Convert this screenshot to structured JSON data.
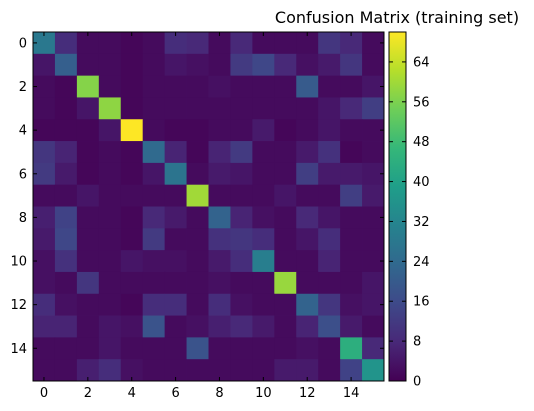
{
  "chart_data": {
    "type": "heatmap",
    "title": "Confusion Matrix (training set)",
    "xlabel": "",
    "ylabel": "",
    "colormap": "viridis",
    "colormap_stops": [
      "#440154",
      "#482878",
      "#3e4989",
      "#31688e",
      "#26828e",
      "#1f9e89",
      "#35b779",
      "#6ece58",
      "#b5de2b",
      "#fde725"
    ],
    "color_range": [
      0,
      70
    ],
    "x_ticks": [
      0,
      2,
      4,
      6,
      8,
      10,
      12,
      14
    ],
    "y_ticks": [
      0,
      2,
      4,
      6,
      8,
      10,
      12,
      14
    ],
    "colorbar_ticks": [
      0,
      8,
      16,
      24,
      32,
      40,
      48,
      56,
      64
    ],
    "grid": false,
    "legend": "colorbar-right",
    "matrix": [
      [
        28,
        9,
        2,
        2,
        1,
        2,
        9,
        8,
        2,
        8,
        2,
        2,
        2,
        11,
        8,
        2
      ],
      [
        4,
        21,
        2,
        2,
        1,
        2,
        4,
        3,
        2,
        12,
        15,
        8,
        3,
        5,
        11,
        2
      ],
      [
        2,
        1,
        57,
        2,
        1,
        2,
        2,
        2,
        3,
        2,
        2,
        2,
        20,
        2,
        2,
        4
      ],
      [
        2,
        1,
        4,
        58,
        1,
        2,
        2,
        2,
        2,
        2,
        2,
        2,
        2,
        4,
        8,
        13
      ],
      [
        1,
        1,
        1,
        4,
        70,
        2,
        1,
        1,
        2,
        2,
        5,
        1,
        2,
        4,
        2,
        2
      ],
      [
        11,
        7,
        1,
        2,
        1,
        24,
        7,
        1,
        7,
        12,
        2,
        2,
        5,
        10,
        1,
        2
      ],
      [
        12,
        5,
        1,
        2,
        1,
        4,
        27,
        2,
        5,
        4,
        2,
        2,
        13,
        5,
        5,
        4
      ],
      [
        2,
        2,
        4,
        2,
        2,
        2,
        2,
        60,
        2,
        2,
        2,
        4,
        2,
        2,
        13,
        5
      ],
      [
        6,
        14,
        2,
        2,
        1,
        8,
        5,
        2,
        22,
        7,
        3,
        2,
        8,
        4,
        2,
        2
      ],
      [
        5,
        15,
        2,
        2,
        1,
        12,
        2,
        2,
        10,
        11,
        9,
        2,
        4,
        9,
        2,
        2
      ],
      [
        3,
        10,
        2,
        2,
        4,
        3,
        3,
        2,
        5,
        9,
        30,
        2,
        2,
        7,
        2,
        2
      ],
      [
        3,
        2,
        11,
        2,
        2,
        2,
        2,
        2,
        3,
        2,
        2,
        59,
        2,
        2,
        2,
        4
      ],
      [
        9,
        3,
        2,
        2,
        1,
        9,
        9,
        2,
        9,
        3,
        2,
        2,
        22,
        11,
        3,
        4
      ],
      [
        7,
        7,
        2,
        4,
        3,
        18,
        2,
        3,
        6,
        8,
        5,
        2,
        7,
        17,
        5,
        2
      ],
      [
        2,
        2,
        2,
        4,
        2,
        2,
        2,
        18,
        2,
        2,
        2,
        2,
        3,
        2,
        44,
        8
      ],
      [
        2,
        2,
        6,
        9,
        3,
        2,
        2,
        2,
        2,
        2,
        2,
        5,
        5,
        2,
        14,
        36
      ]
    ]
  }
}
